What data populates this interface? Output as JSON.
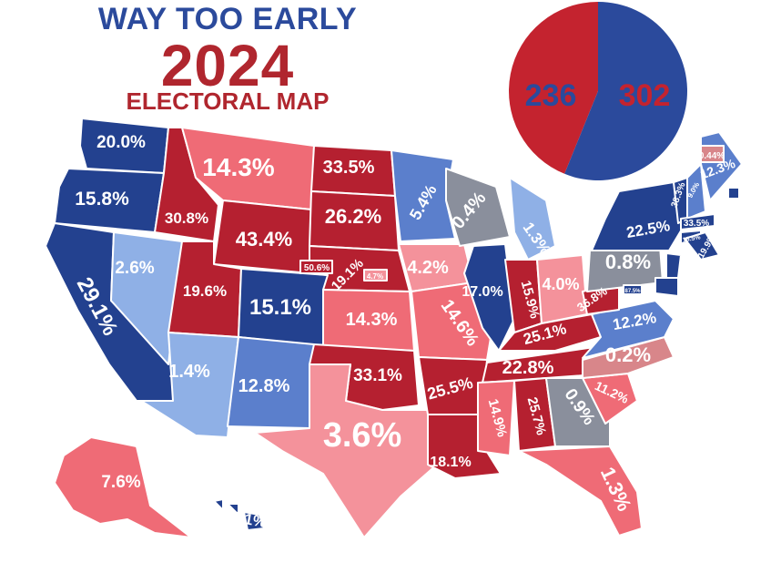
{
  "header": {
    "line1": "WAY TOO EARLY",
    "line2": "2024",
    "line3": "ELECTORAL MAP"
  },
  "pie": {
    "red_votes": "236",
    "blue_votes": "302",
    "red_value": 236,
    "blue_value": 302,
    "red_color": "#c4232f",
    "blue_color": "#2b4a9c"
  },
  "colors": {
    "safe_r": "#b52030",
    "lean_r": "#ef6b76",
    "tilt_r": "#f4929b",
    "tossup": "#8a8f9c",
    "tilt_d": "#8fb0e6",
    "lean_d": "#5b7fcc",
    "safe_d": "#23418f",
    "pink_r": "#d8868a"
  },
  "states": [
    {
      "id": "WA",
      "margin": "20.0%",
      "party": "safe_d"
    },
    {
      "id": "OR",
      "margin": "15.8%",
      "party": "safe_d"
    },
    {
      "id": "CA",
      "margin": "29.1%",
      "party": "safe_d"
    },
    {
      "id": "NV",
      "margin": "2.6%",
      "party": "tilt_d"
    },
    {
      "id": "ID",
      "margin": "30.8%",
      "party": "safe_r"
    },
    {
      "id": "MT",
      "margin": "14.3%",
      "party": "lean_r"
    },
    {
      "id": "WY",
      "margin": "43.4%",
      "party": "safe_r"
    },
    {
      "id": "UT",
      "margin": "19.6%",
      "party": "safe_r"
    },
    {
      "id": "AZ",
      "margin": "1.4%",
      "party": "tilt_d"
    },
    {
      "id": "CO",
      "margin": "15.1%",
      "party": "safe_d"
    },
    {
      "id": "NM",
      "margin": "12.8%",
      "party": "lean_d"
    },
    {
      "id": "ND",
      "margin": "33.5%",
      "party": "safe_r"
    },
    {
      "id": "SD",
      "margin": "26.2%",
      "party": "safe_r"
    },
    {
      "id": "NE",
      "margin": "19.1%",
      "party": "safe_r"
    },
    {
      "id": "NE2",
      "margin": "4.7%",
      "party": "tilt_r"
    },
    {
      "id": "NE1",
      "margin": "50.6%",
      "party": "safe_r"
    },
    {
      "id": "KS",
      "margin": "14.3%",
      "party": "lean_r"
    },
    {
      "id": "OK",
      "margin": "33.1%",
      "party": "safe_r"
    },
    {
      "id": "TX",
      "margin": "3.6%",
      "party": "tilt_r"
    },
    {
      "id": "MN",
      "margin": "5.4%",
      "party": "lean_d"
    },
    {
      "id": "IA",
      "margin": "4.2%",
      "party": "tilt_r"
    },
    {
      "id": "MO",
      "margin": "14.6%",
      "party": "lean_r"
    },
    {
      "id": "AR",
      "margin": "25.5%",
      "party": "safe_r"
    },
    {
      "id": "LA",
      "margin": "18.1%",
      "party": "safe_r"
    },
    {
      "id": "WI",
      "margin": "0.4%",
      "party": "tossup"
    },
    {
      "id": "IL",
      "margin": "17.0%",
      "party": "safe_d"
    },
    {
      "id": "MI",
      "margin": "1.3%",
      "party": "tilt_d"
    },
    {
      "id": "IN",
      "margin": "15.9%",
      "party": "safe_r"
    },
    {
      "id": "OH",
      "margin": "4.0%",
      "party": "tilt_r"
    },
    {
      "id": "KY",
      "margin": "25.1%",
      "party": "safe_r"
    },
    {
      "id": "TN",
      "margin": "22.8%",
      "party": "safe_r"
    },
    {
      "id": "MS",
      "margin": "14.9%",
      "party": "lean_r"
    },
    {
      "id": "AL",
      "margin": "25.7%",
      "party": "safe_r"
    },
    {
      "id": "GA",
      "margin": "0.9%",
      "party": "tossup"
    },
    {
      "id": "FL",
      "margin": "1.3%",
      "party": "lean_r"
    },
    {
      "id": "SC",
      "margin": "11.2%",
      "party": "lean_r"
    },
    {
      "id": "NC",
      "margin": "0.2%",
      "party": "pink_r"
    },
    {
      "id": "VA",
      "margin": "12.2%",
      "party": "lean_d"
    },
    {
      "id": "WV",
      "margin": "36.8%",
      "party": "safe_r"
    },
    {
      "id": "PA",
      "margin": "0.8%",
      "party": "tossup"
    },
    {
      "id": "NY",
      "margin": "22.5%",
      "party": "safe_d"
    },
    {
      "id": "VT",
      "margin": "38.3%",
      "party": "safe_d"
    },
    {
      "id": "NH",
      "margin": "9.0%",
      "party": "lean_d"
    },
    {
      "id": "ME",
      "margin": "12.3%",
      "party": "lean_d"
    },
    {
      "id": "ME2",
      "margin": "0.44%",
      "party": "pink_r"
    },
    {
      "id": "MA",
      "margin": "33.5%",
      "party": "safe_d"
    },
    {
      "id": "CT",
      "margin": "18.5%",
      "party": "safe_d"
    },
    {
      "id": "RI",
      "margin": "23.3%",
      "party": "safe_d"
    },
    {
      "id": "NJ",
      "margin": "16.0%",
      "party": "safe_d"
    },
    {
      "id": "DE",
      "margin": "19.9%",
      "party": "safe_d"
    },
    {
      "id": "MD",
      "margin": "16.6%",
      "party": "safe_d"
    },
    {
      "id": "DC",
      "margin": "87.5%",
      "party": "safe_d"
    },
    {
      "id": "AK",
      "margin": "7.6%",
      "party": "lean_r"
    },
    {
      "id": "HI",
      "margin": "31.1%",
      "party": "safe_d"
    }
  ]
}
